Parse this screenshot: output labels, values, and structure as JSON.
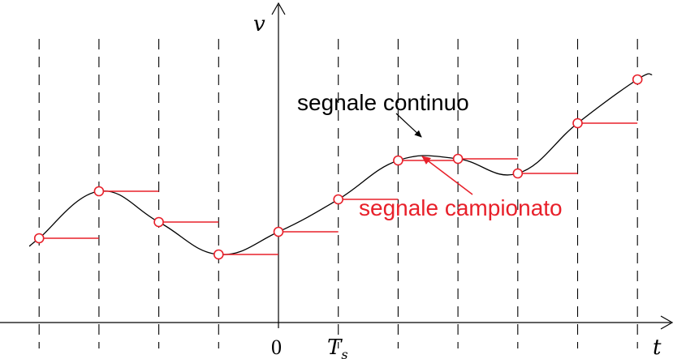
{
  "axes": {
    "y_label": "v",
    "x_label": "t",
    "origin_label": "0",
    "ts_label_main": "T",
    "ts_label_sub": "s"
  },
  "labels": {
    "continuous": "segnale continuo",
    "sampled": "segnale campionato"
  },
  "colors": {
    "continuous": "#000000",
    "sampled": "#e8202a",
    "grid": "#000000",
    "axis": "#000000"
  },
  "chart_data": {
    "type": "line",
    "sample_index": [
      -4,
      -3,
      -2,
      -1,
      0,
      1,
      2,
      3,
      4,
      5,
      6
    ],
    "series": [
      {
        "name": "segnale campionato",
        "values": [
          0.52,
          0.81,
          0.62,
          0.42,
          0.56,
          0.76,
          1.0,
          1.01,
          0.92,
          1.23,
          1.5
        ]
      }
    ]
  }
}
